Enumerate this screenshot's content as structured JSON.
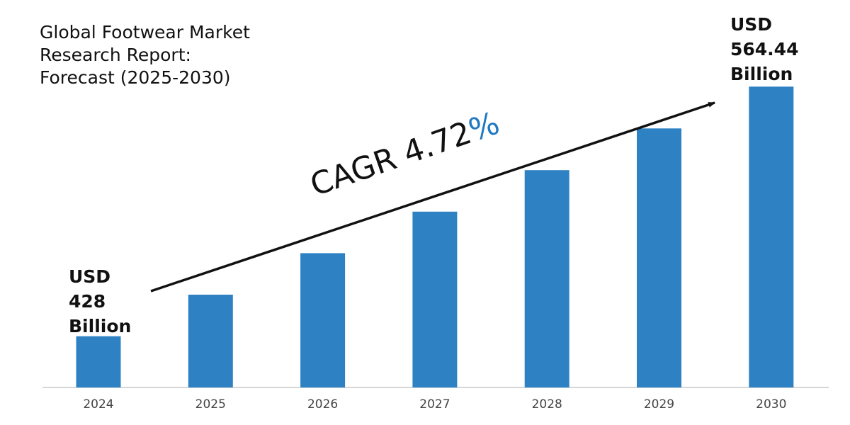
{
  "title_lines": [
    "Global Footwear Market",
    "Research Report:",
    "Forecast (2025-2030)"
  ],
  "start_callout": [
    "USD",
    "428",
    "Billion"
  ],
  "end_callout": [
    "USD",
    "564.44",
    "Billion"
  ],
  "cagr": {
    "text": "CAGR 4.72",
    "percent_symbol": "%",
    "percent_color": "#1f78c1"
  },
  "colors": {
    "bar": "#2e82c4",
    "axis": "#c8c8c8",
    "tick_label": "#444444",
    "arrow": "#111111"
  },
  "chart_data": {
    "type": "bar",
    "title": "Global Footwear Market Research Report: Forecast (2025-2030)",
    "xlabel": "",
    "ylabel": "",
    "categories": [
      "2024",
      "2025",
      "2026",
      "2027",
      "2028",
      "2029",
      "2030"
    ],
    "values": [
      428,
      450.7,
      473.4,
      496.1,
      518.8,
      541.6,
      564.44
    ],
    "ylim": [
      400,
      575
    ],
    "grid": false,
    "legend": "none",
    "unit": "USD Billion",
    "cagr_percent": 4.72
  }
}
